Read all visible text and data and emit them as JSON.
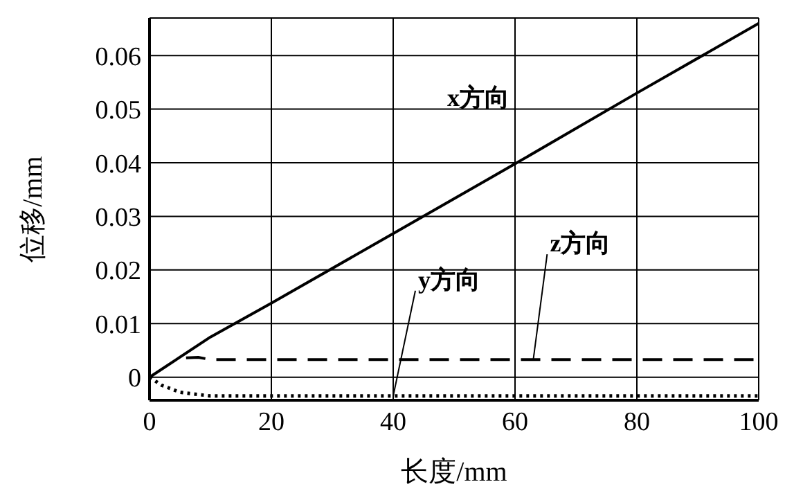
{
  "chart_data": {
    "type": "line",
    "xlabel": "长度/mm",
    "ylabel": "位移/mm",
    "xlim": [
      0,
      100
    ],
    "xticks": [
      0,
      20,
      40,
      60,
      80,
      100
    ],
    "ylim": [
      -0.0043,
      0.067
    ],
    "yticks": [
      0,
      0.01,
      0.02,
      0.03,
      0.04,
      0.05,
      0.06
    ],
    "grid": true,
    "marker": "none",
    "series": [
      {
        "color": "#000000",
        "line_style": "solid",
        "x": [
          0,
          10,
          20,
          40,
          60,
          80,
          100
        ],
        "values": [
          0,
          0.0075,
          0.0138,
          0.0268,
          0.0398,
          0.053,
          0.066
        ]
      },
      {
        "color": "#000000",
        "line_style": "dotted",
        "x": [
          0,
          2,
          5,
          10,
          40,
          100
        ],
        "values": [
          0,
          -0.0015,
          -0.0028,
          -0.0035,
          -0.0035,
          -0.0035
        ]
      },
      {
        "color": "#000000",
        "line_style": "dashed",
        "x": [
          6,
          8,
          10,
          40,
          100
        ],
        "values": [
          0.0036,
          0.0037,
          0.0033,
          0.0033,
          0.0033
        ]
      }
    ],
    "annotations": [
      {
        "text": "x方向",
        "x": 60,
        "y": 0.0398
      },
      {
        "text": "y方向",
        "x": 40,
        "y": -0.0035
      },
      {
        "text": "z方向",
        "x": 63,
        "y": 0.0033
      }
    ]
  }
}
